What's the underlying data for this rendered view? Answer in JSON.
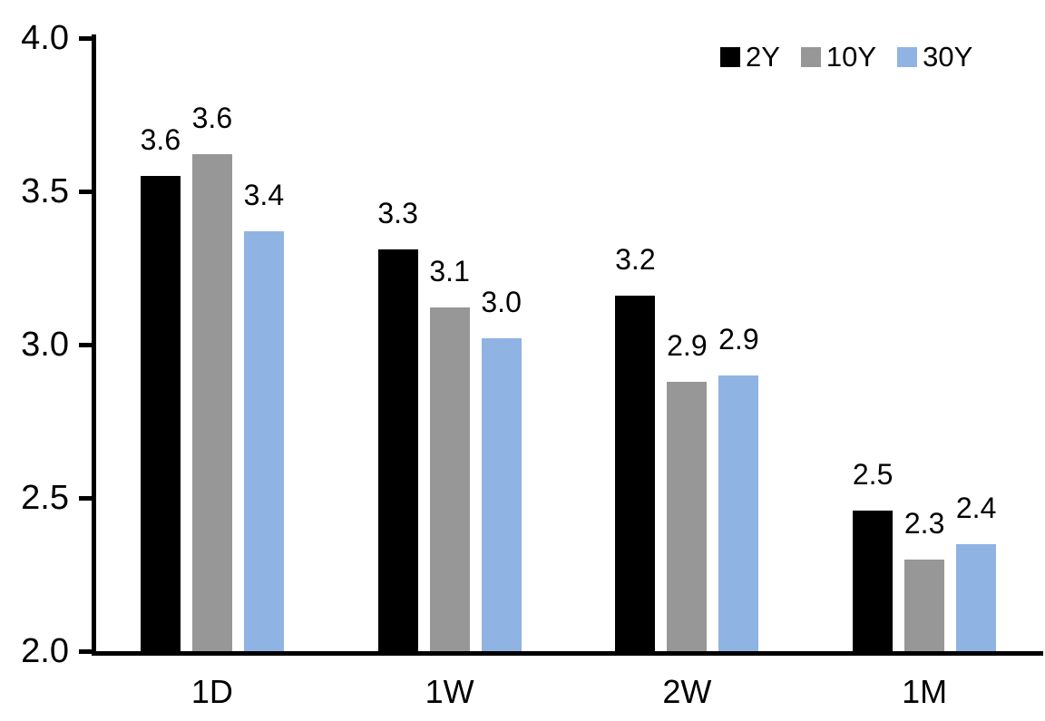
{
  "chart_data": {
    "type": "bar",
    "title": "",
    "categories": [
      "1D",
      "1W",
      "2W",
      "1M"
    ],
    "series": [
      {
        "name": "2Y",
        "color": "#000000",
        "values": [
          3.55,
          3.31,
          3.16,
          2.46
        ],
        "labels": [
          "3.6",
          "3.3",
          "3.2",
          "2.5"
        ]
      },
      {
        "name": "10Y",
        "color": "#979797",
        "values": [
          3.62,
          3.12,
          2.88,
          2.3
        ],
        "labels": [
          "3.6",
          "3.1",
          "2.9",
          "2.3"
        ]
      },
      {
        "name": "30Y",
        "color": "#8FB3E3",
        "values": [
          3.37,
          3.02,
          2.9,
          2.35
        ],
        "labels": [
          "3.4",
          "3.0",
          "2.9",
          "2.4"
        ]
      }
    ],
    "ylim": [
      2.0,
      4.0
    ],
    "yticks": [
      {
        "value": 4.0,
        "label": "4.0"
      },
      {
        "value": 3.5,
        "label": "3.5"
      },
      {
        "value": 3.0,
        "label": "3.0"
      },
      {
        "value": 2.5,
        "label": "2.5"
      },
      {
        "value": 2.0,
        "label": "2.0"
      }
    ],
    "grid": false,
    "legend_position": "top-right",
    "axis_color": "#000000",
    "background_color": "#FFFFFF"
  }
}
